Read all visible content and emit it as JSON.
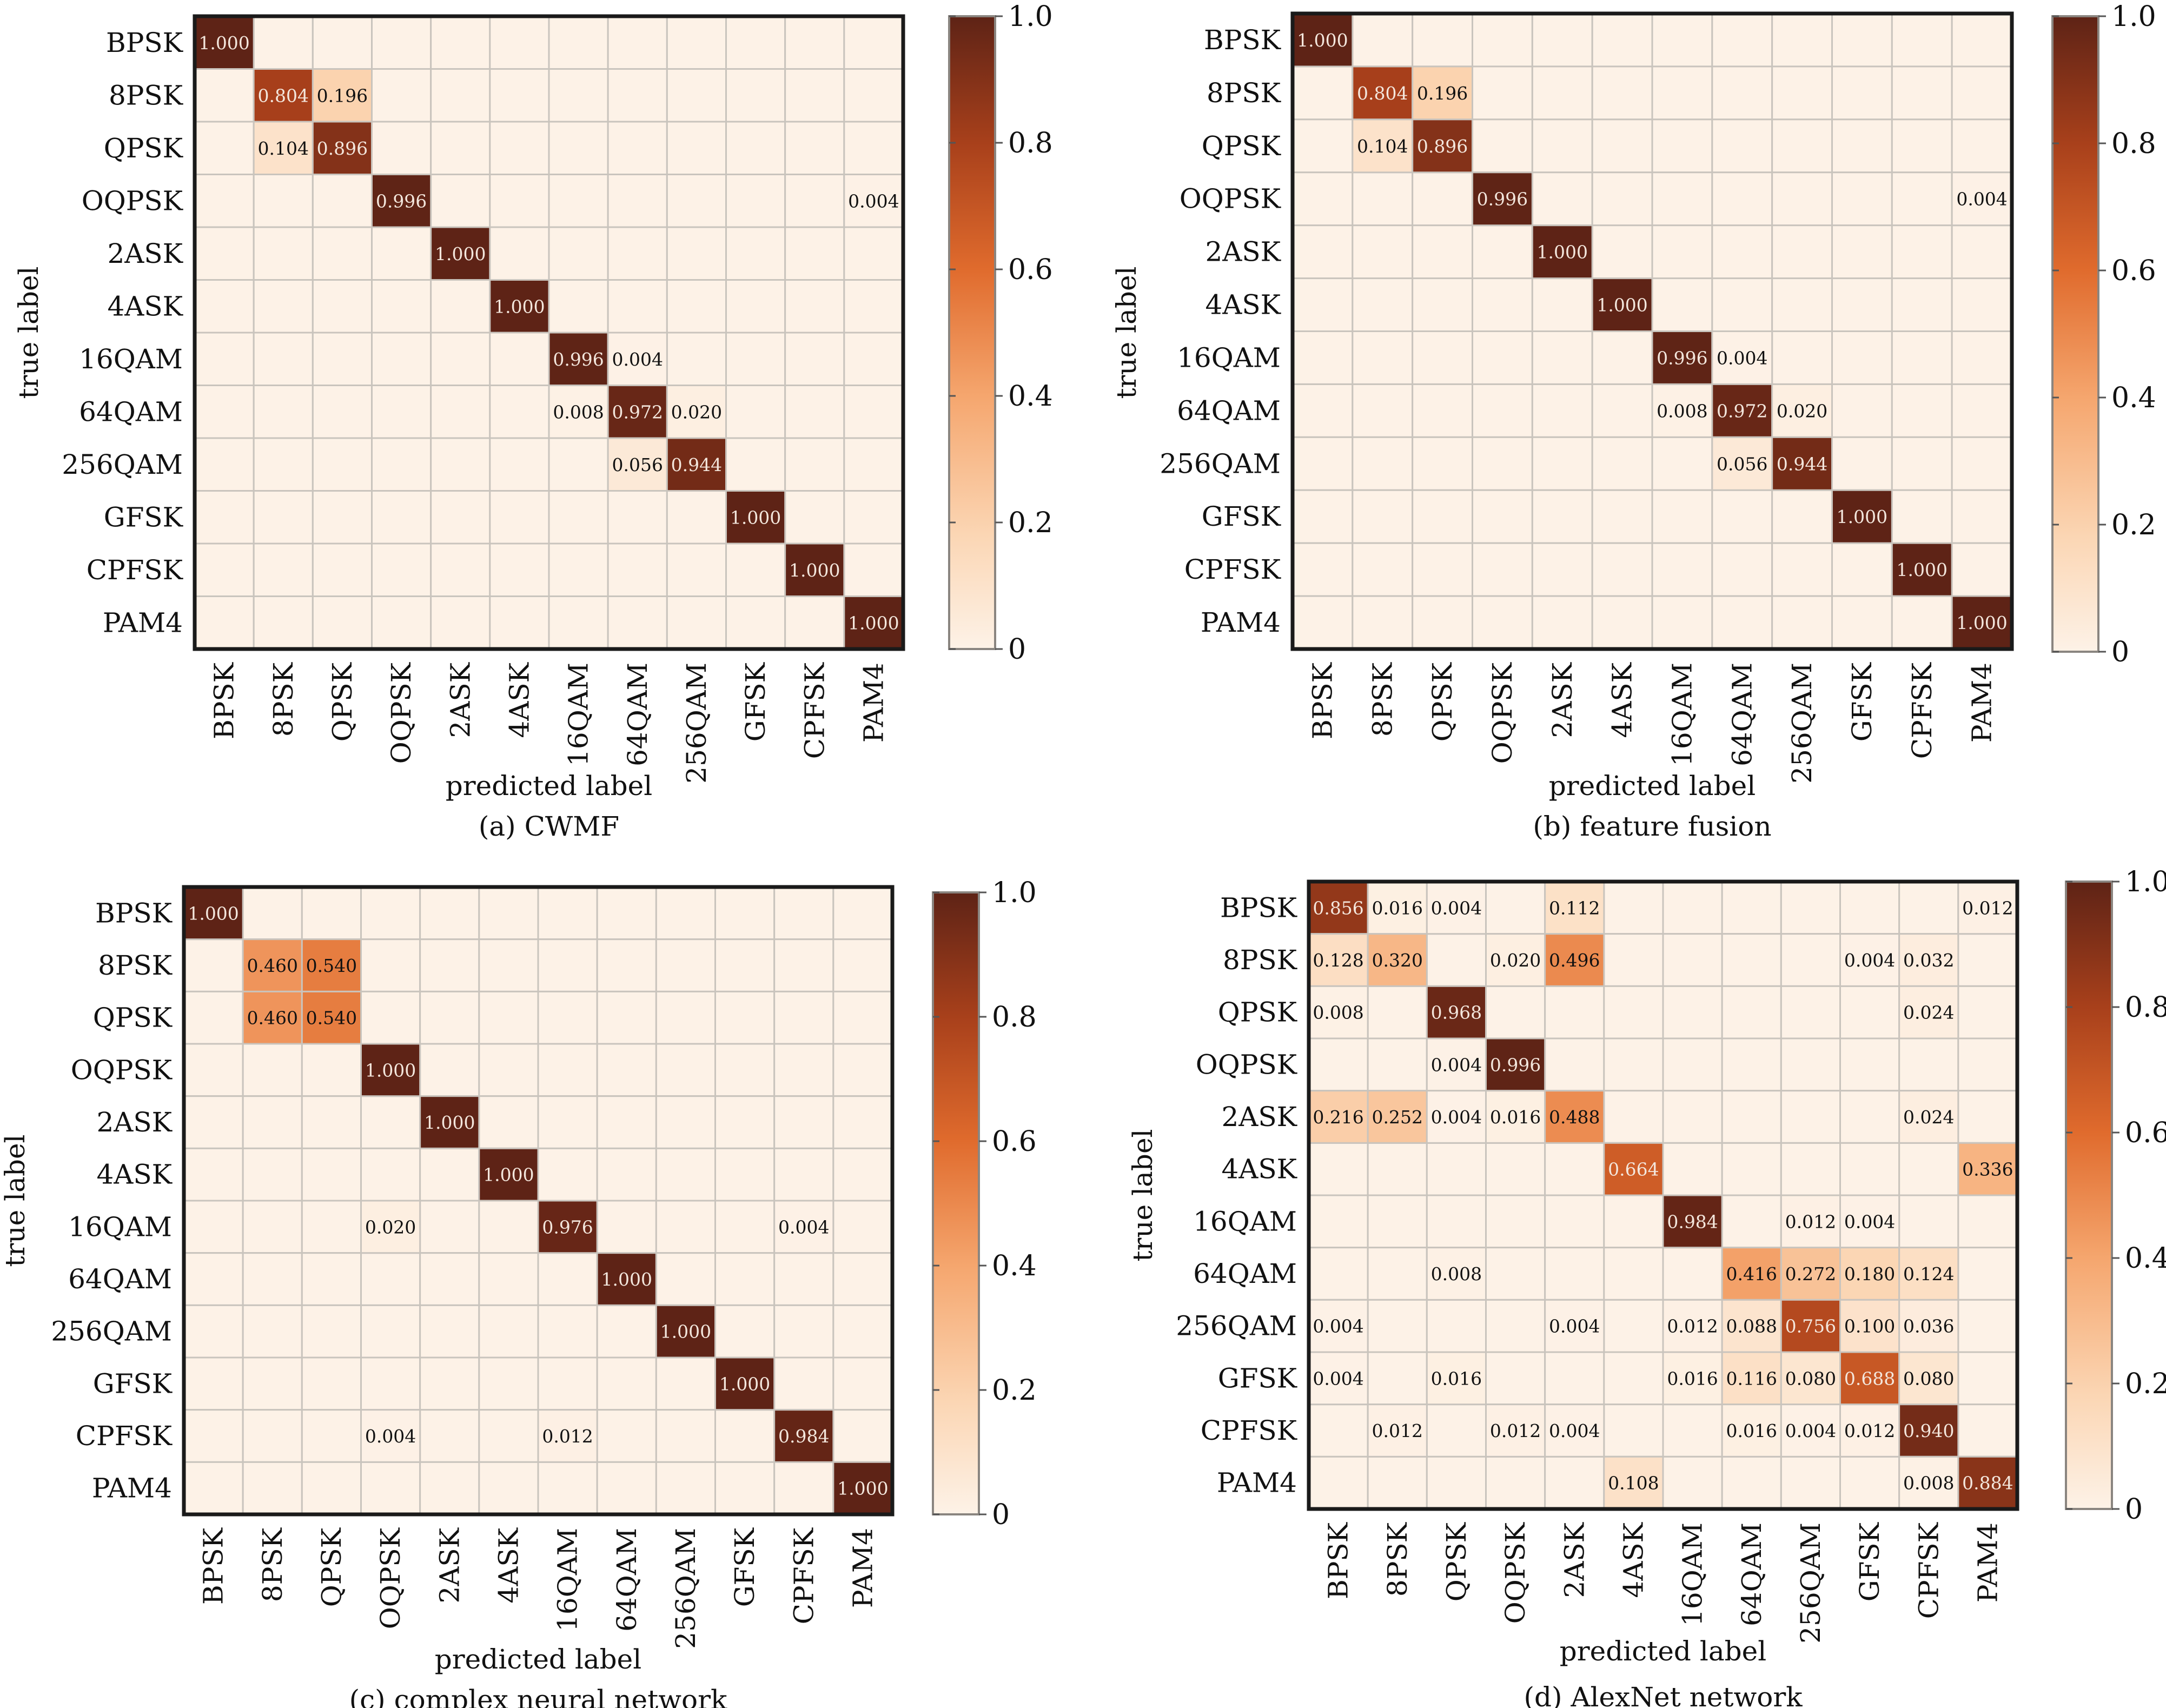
{
  "chart_data": [
    {
      "type": "heatmap",
      "caption": "(a) CWMF",
      "xlabel": "predicted label",
      "ylabel": "true label",
      "row_labels": [
        "BPSK",
        "8PSK",
        "QPSK",
        "OQPSK",
        "2ASK",
        "4ASK",
        "16QAM",
        "64QAM",
        "256QAM",
        "GFSK",
        "CPFSK",
        "PAM4"
      ],
      "col_labels": [
        "BPSK",
        "8PSK",
        "QPSK",
        "OQPSK",
        "2ASK",
        "4ASK",
        "16QAM",
        "64QAM",
        "256QAM",
        "GFSK",
        "CPFSK",
        "PAM4"
      ],
      "cells": [
        [
          0,
          0,
          "1.000"
        ],
        [
          1,
          1,
          "0.804"
        ],
        [
          1,
          2,
          "0.196"
        ],
        [
          2,
          1,
          "0.104"
        ],
        [
          2,
          2,
          "0.896"
        ],
        [
          3,
          3,
          "0.996"
        ],
        [
          3,
          11,
          "0.004"
        ],
        [
          4,
          4,
          "1.000"
        ],
        [
          5,
          5,
          "1.000"
        ],
        [
          6,
          6,
          "0.996"
        ],
        [
          6,
          7,
          "0.004"
        ],
        [
          7,
          6,
          "0.008"
        ],
        [
          7,
          7,
          "0.972"
        ],
        [
          7,
          8,
          "0.020"
        ],
        [
          8,
          7,
          "0.056"
        ],
        [
          8,
          8,
          "0.944"
        ],
        [
          9,
          9,
          "1.000"
        ],
        [
          10,
          10,
          "1.000"
        ],
        [
          11,
          11,
          "1.000"
        ]
      ],
      "colorbar": {
        "min": 0,
        "max": 1,
        "ticks": [
          "0",
          "0.2",
          "0.4",
          "0.6",
          "0.8",
          "1.0"
        ]
      }
    },
    {
      "type": "heatmap",
      "caption": "(b) feature fusion",
      "xlabel": "predicted label",
      "ylabel": "true label",
      "row_labels": [
        "BPSK",
        "8PSK",
        "QPSK",
        "OQPSK",
        "2ASK",
        "4ASK",
        "16QAM",
        "64QAM",
        "256QAM",
        "GFSK",
        "CPFSK",
        "PAM4"
      ],
      "col_labels": [
        "BPSK",
        "8PSK",
        "QPSK",
        "OQPSK",
        "2ASK",
        "4ASK",
        "16QAM",
        "64QAM",
        "256QAM",
        "GFSK",
        "CPFSK",
        "PAM4"
      ],
      "cells": [
        [
          0,
          0,
          "1.000"
        ],
        [
          1,
          1,
          "0.804"
        ],
        [
          1,
          2,
          "0.196"
        ],
        [
          2,
          1,
          "0.104"
        ],
        [
          2,
          2,
          "0.896"
        ],
        [
          3,
          3,
          "0.996"
        ],
        [
          3,
          11,
          "0.004"
        ],
        [
          4,
          4,
          "1.000"
        ],
        [
          5,
          5,
          "1.000"
        ],
        [
          6,
          6,
          "0.996"
        ],
        [
          6,
          7,
          "0.004"
        ],
        [
          7,
          6,
          "0.008"
        ],
        [
          7,
          7,
          "0.972"
        ],
        [
          7,
          8,
          "0.020"
        ],
        [
          8,
          7,
          "0.056"
        ],
        [
          8,
          8,
          "0.944"
        ],
        [
          9,
          9,
          "1.000"
        ],
        [
          10,
          10,
          "1.000"
        ],
        [
          11,
          11,
          "1.000"
        ]
      ],
      "colorbar": {
        "min": 0,
        "max": 1,
        "ticks": [
          "0",
          "0.2",
          "0.4",
          "0.6",
          "0.8",
          "1.0"
        ]
      }
    },
    {
      "type": "heatmap",
      "caption": "(c) complex neural network",
      "xlabel": "predicted label",
      "ylabel": "true label",
      "row_labels": [
        "BPSK",
        "8PSK",
        "QPSK",
        "OQPSK",
        "2ASK",
        "4ASK",
        "16QAM",
        "64QAM",
        "256QAM",
        "GFSK",
        "CPFSK",
        "PAM4"
      ],
      "col_labels": [
        "BPSK",
        "8PSK",
        "QPSK",
        "OQPSK",
        "2ASK",
        "4ASK",
        "16QAM",
        "64QAM",
        "256QAM",
        "GFSK",
        "CPFSK",
        "PAM4"
      ],
      "cells": [
        [
          0,
          0,
          "1.000"
        ],
        [
          1,
          1,
          "0.460"
        ],
        [
          1,
          2,
          "0.540"
        ],
        [
          2,
          1,
          "0.460"
        ],
        [
          2,
          2,
          "0.540"
        ],
        [
          3,
          3,
          "1.000"
        ],
        [
          4,
          4,
          "1.000"
        ],
        [
          5,
          5,
          "1.000"
        ],
        [
          6,
          3,
          "0.020"
        ],
        [
          6,
          6,
          "0.976"
        ],
        [
          6,
          10,
          "0.004"
        ],
        [
          7,
          7,
          "1.000"
        ],
        [
          8,
          8,
          "1.000"
        ],
        [
          9,
          9,
          "1.000"
        ],
        [
          10,
          3,
          "0.004"
        ],
        [
          10,
          6,
          "0.012"
        ],
        [
          10,
          10,
          "0.984"
        ],
        [
          11,
          11,
          "1.000"
        ]
      ],
      "colorbar": {
        "min": 0,
        "max": 1,
        "ticks": [
          "0",
          "0.2",
          "0.4",
          "0.6",
          "0.8",
          "1.0"
        ]
      }
    },
    {
      "type": "heatmap",
      "caption": "(d) AlexNet network",
      "xlabel": "predicted label",
      "ylabel": "true label",
      "row_labels": [
        "BPSK",
        "8PSK",
        "QPSK",
        "OQPSK",
        "2ASK",
        "4ASK",
        "16QAM",
        "64QAM",
        "256QAM",
        "GFSK",
        "CPFSK",
        "PAM4"
      ],
      "col_labels": [
        "BPSK",
        "8PSK",
        "QPSK",
        "OQPSK",
        "2ASK",
        "4ASK",
        "16QAM",
        "64QAM",
        "256QAM",
        "GFSK",
        "CPFSK",
        "PAM4"
      ],
      "cells": [
        [
          0,
          0,
          "0.856"
        ],
        [
          0,
          1,
          "0.016"
        ],
        [
          0,
          2,
          "0.004"
        ],
        [
          0,
          4,
          "0.112"
        ],
        [
          0,
          11,
          "0.012"
        ],
        [
          1,
          0,
          "0.128"
        ],
        [
          1,
          1,
          "0.320"
        ],
        [
          1,
          3,
          "0.020"
        ],
        [
          1,
          4,
          "0.496"
        ],
        [
          1,
          9,
          "0.004"
        ],
        [
          1,
          10,
          "0.032"
        ],
        [
          2,
          0,
          "0.008"
        ],
        [
          2,
          2,
          "0.968"
        ],
        [
          2,
          10,
          "0.024"
        ],
        [
          3,
          2,
          "0.004"
        ],
        [
          3,
          3,
          "0.996"
        ],
        [
          4,
          0,
          "0.216"
        ],
        [
          4,
          1,
          "0.252"
        ],
        [
          4,
          2,
          "0.004"
        ],
        [
          4,
          3,
          "0.016"
        ],
        [
          4,
          4,
          "0.488"
        ],
        [
          4,
          10,
          "0.024"
        ],
        [
          5,
          5,
          "0.664"
        ],
        [
          5,
          11,
          "0.336"
        ],
        [
          6,
          6,
          "0.984"
        ],
        [
          6,
          8,
          "0.012"
        ],
        [
          6,
          9,
          "0.004"
        ],
        [
          7,
          2,
          "0.008"
        ],
        [
          7,
          7,
          "0.416"
        ],
        [
          7,
          8,
          "0.272"
        ],
        [
          7,
          9,
          "0.180"
        ],
        [
          7,
          10,
          "0.124"
        ],
        [
          8,
          0,
          "0.004"
        ],
        [
          8,
          4,
          "0.004"
        ],
        [
          8,
          6,
          "0.012"
        ],
        [
          8,
          7,
          "0.088"
        ],
        [
          8,
          8,
          "0.756"
        ],
        [
          8,
          9,
          "0.100"
        ],
        [
          8,
          10,
          "0.036"
        ],
        [
          9,
          0,
          "0.004"
        ],
        [
          9,
          2,
          "0.016"
        ],
        [
          9,
          6,
          "0.016"
        ],
        [
          9,
          7,
          "0.116"
        ],
        [
          9,
          8,
          "0.080"
        ],
        [
          9,
          9,
          "0.688"
        ],
        [
          9,
          10,
          "0.080"
        ],
        [
          10,
          1,
          "0.012"
        ],
        [
          10,
          3,
          "0.012"
        ],
        [
          10,
          4,
          "0.004"
        ],
        [
          10,
          7,
          "0.016"
        ],
        [
          10,
          8,
          "0.004"
        ],
        [
          10,
          9,
          "0.012"
        ],
        [
          10,
          10,
          "0.940"
        ],
        [
          11,
          5,
          "0.108"
        ],
        [
          11,
          10,
          "0.008"
        ],
        [
          11,
          11,
          "0.884"
        ]
      ],
      "colorbar": {
        "min": 0,
        "max": 1,
        "ticks": [
          "0",
          "0.2",
          "0.4",
          "0.6",
          "0.8",
          "1.0"
        ]
      }
    }
  ],
  "colors": {
    "low": "#fdf2e7",
    "mid": "#ef8a4c",
    "high_mid": "#c04d1c",
    "high": "#5e2316",
    "grid": "#c9c4bd",
    "frame": "#1a1a1a"
  }
}
